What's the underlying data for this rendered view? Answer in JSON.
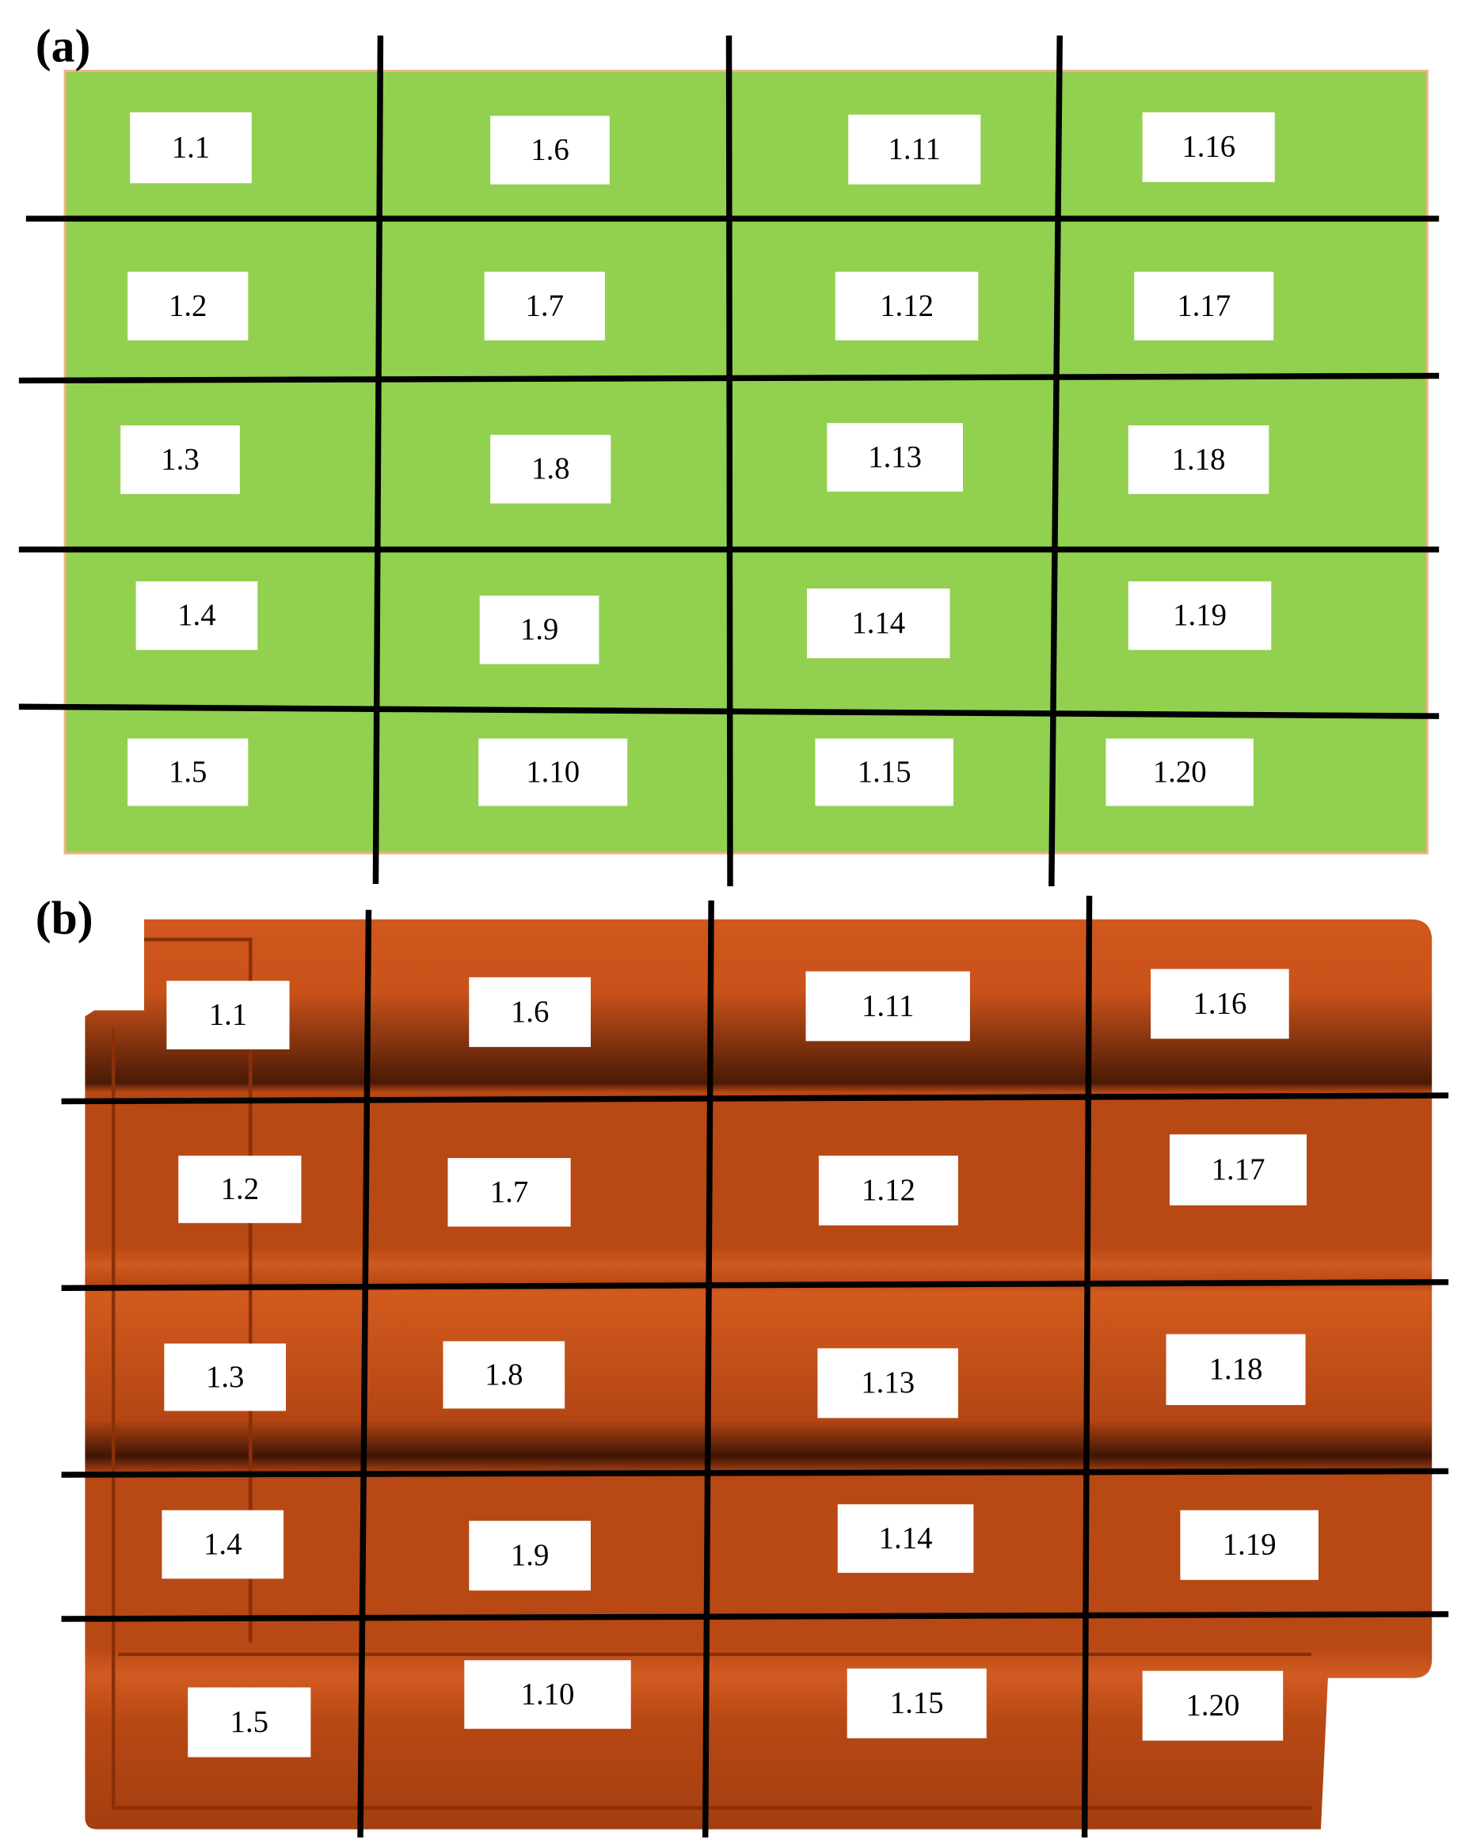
{
  "panels": [
    {
      "label": "(a)",
      "cells": [
        "1.1",
        "1.2",
        "1.3",
        "1.4",
        "1.5",
        "1.6",
        "1.7",
        "1.8",
        "1.9",
        "1.10",
        "1.11",
        "1.12",
        "1.13",
        "1.14",
        "1.15",
        "1.16",
        "1.17",
        "1.18",
        "1.19",
        "1.20"
      ]
    },
    {
      "label": "(b)",
      "cells": [
        "1.1",
        "1.2",
        "1.3",
        "1.4",
        "1.5",
        "1.6",
        "1.7",
        "1.8",
        "1.9",
        "1.10",
        "1.11",
        "1.12",
        "1.13",
        "1.14",
        "1.15",
        "1.16",
        "1.17",
        "1.18",
        "1.19",
        "1.20"
      ]
    }
  ]
}
